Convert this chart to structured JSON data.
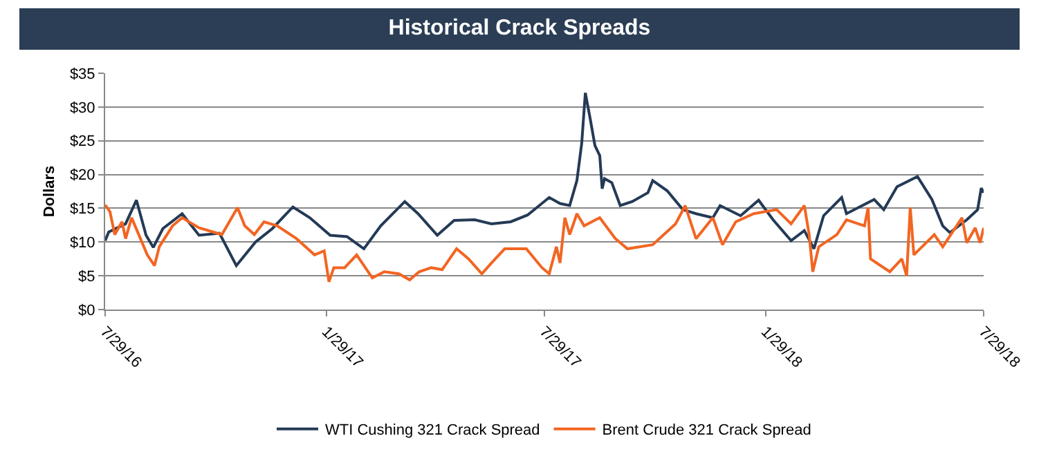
{
  "chart_data": {
    "type": "line",
    "title": "Historical Crack Spreads",
    "ylabel": "Dollars",
    "xlim": [
      "2016-07-29",
      "2018-07-29"
    ],
    "xticks": [
      {
        "value": "2016-07-29",
        "label": "7/29/16"
      },
      {
        "value": "2017-01-29",
        "label": "1/29/17"
      },
      {
        "value": "2017-07-29",
        "label": "7/29/17"
      },
      {
        "value": "2018-01-29",
        "label": "1/29/18"
      },
      {
        "value": "2018-07-29",
        "label": "7/29/18"
      }
    ],
    "ylim": [
      0,
      35
    ],
    "yticks": [
      {
        "value": 0,
        "label": "$0"
      },
      {
        "value": 5,
        "label": "$5"
      },
      {
        "value": 10,
        "label": "$10"
      },
      {
        "value": 15,
        "label": "$15"
      },
      {
        "value": 20,
        "label": "$20"
      },
      {
        "value": 25,
        "label": "$25"
      },
      {
        "value": 30,
        "label": "$30"
      },
      {
        "value": 35,
        "label": "$35"
      }
    ],
    "grid": "y",
    "legend": "bottom",
    "marker": "none",
    "line_style": "solid",
    "series": [
      {
        "name": "WTI Cushing 321 Crack Spread",
        "color": "#243a56",
        "x": [
          "2016-07-29",
          "2016-08-01",
          "2016-08-15",
          "2016-08-24",
          "2016-09-01",
          "2016-09-07",
          "2016-09-15",
          "2016-10-01",
          "2016-10-15",
          "2016-11-01",
          "2016-11-15",
          "2016-12-01",
          "2016-12-15",
          "2017-01-01",
          "2017-01-15",
          "2017-02-01",
          "2017-02-15",
          "2017-03-01",
          "2017-03-15",
          "2017-04-04",
          "2017-04-15",
          "2017-05-01",
          "2017-05-15",
          "2017-06-01",
          "2017-06-15",
          "2017-07-01",
          "2017-07-15",
          "2017-08-02",
          "2017-08-11",
          "2017-08-19",
          "2017-08-25",
          "2017-08-29",
          "2017-09-01",
          "2017-09-05",
          "2017-09-09",
          "2017-09-13",
          "2017-09-15",
          "2017-09-17",
          "2017-09-23",
          "2017-09-30",
          "2017-10-10",
          "2017-10-23",
          "2017-10-27",
          "2017-11-08",
          "2017-11-21",
          "2017-12-02",
          "2017-12-16",
          "2017-12-22",
          "2018-01-08",
          "2018-01-23",
          "2018-02-04",
          "2018-02-19",
          "2018-03-02",
          "2018-03-10",
          "2018-03-18",
          "2018-04-02",
          "2018-04-06",
          "2018-04-29",
          "2018-05-07",
          "2018-05-18",
          "2018-06-04",
          "2018-06-16",
          "2018-06-25",
          "2018-07-01",
          "2018-07-15",
          "2018-07-24",
          "2018-07-27",
          "2018-07-29"
        ],
        "values": [
          10.2,
          11.5,
          12.7,
          16.2,
          11.0,
          9.2,
          12.0,
          14.2,
          11.0,
          11.3,
          6.5,
          10.0,
          12.0,
          15.2,
          13.6,
          11.0,
          10.8,
          9.0,
          12.4,
          16.0,
          14.2,
          11.0,
          13.2,
          13.3,
          12.7,
          13.0,
          14.0,
          16.6,
          15.7,
          15.4,
          19.1,
          24.6,
          32.1,
          28.3,
          24.3,
          22.8,
          17.9,
          19.4,
          18.8,
          15.4,
          16.0,
          17.3,
          19.1,
          17.6,
          14.8,
          14.2,
          13.6,
          15.4,
          13.9,
          16.2,
          13.3,
          10.2,
          11.7,
          9.0,
          13.9,
          16.6,
          14.2,
          16.3,
          14.8,
          18.2,
          19.7,
          16.3,
          12.4,
          11.4,
          13.3,
          14.8,
          18.0,
          17.3
        ]
      },
      {
        "name": "Brent Crude 321 Crack Spread",
        "color": "#f26522",
        "x": [
          "2016-07-29",
          "2016-08-02",
          "2016-08-06",
          "2016-08-12",
          "2016-08-15",
          "2016-08-20",
          "2016-09-02",
          "2016-09-08",
          "2016-09-12",
          "2016-09-23",
          "2016-10-01",
          "2016-10-15",
          "2016-11-03",
          "2016-11-16",
          "2016-11-22",
          "2016-11-30",
          "2016-12-08",
          "2016-12-19",
          "2017-01-04",
          "2017-01-19",
          "2017-01-27",
          "2017-01-31",
          "2017-02-04",
          "2017-02-13",
          "2017-02-23",
          "2017-03-08",
          "2017-03-18",
          "2017-03-30",
          "2017-04-08",
          "2017-04-16",
          "2017-04-26",
          "2017-05-05",
          "2017-05-17",
          "2017-05-27",
          "2017-06-07",
          "2017-06-15",
          "2017-06-26",
          "2017-07-14",
          "2017-07-27",
          "2017-08-02",
          "2017-08-08",
          "2017-08-11",
          "2017-08-15",
          "2017-08-19",
          "2017-08-25",
          "2017-08-31",
          "2017-09-13",
          "2017-09-26",
          "2017-10-06",
          "2017-10-27",
          "2017-11-15",
          "2017-11-23",
          "2017-12-02",
          "2017-12-16",
          "2017-12-24",
          "2018-01-04",
          "2018-01-19",
          "2018-02-07",
          "2018-02-19",
          "2018-03-02",
          "2018-03-06",
          "2018-03-09",
          "2018-03-14",
          "2018-03-29",
          "2018-04-06",
          "2018-04-21",
          "2018-04-24",
          "2018-04-26",
          "2018-05-12",
          "2018-05-22",
          "2018-05-26",
          "2018-05-29",
          "2018-06-01",
          "2018-06-18",
          "2018-06-25",
          "2018-07-11",
          "2018-07-15",
          "2018-07-22",
          "2018-07-26",
          "2018-07-29"
        ],
        "values": [
          15.5,
          14.5,
          11.1,
          13.0,
          10.5,
          13.6,
          8.1,
          6.5,
          9.3,
          12.4,
          13.6,
          12.1,
          11.1,
          15.1,
          12.4,
          11.1,
          13.0,
          12.4,
          10.5,
          8.1,
          8.7,
          4.1,
          6.2,
          6.2,
          8.1,
          4.7,
          5.6,
          5.3,
          4.4,
          5.6,
          6.2,
          5.9,
          9.0,
          7.5,
          5.3,
          6.9,
          9.0,
          9.0,
          6.2,
          5.3,
          9.3,
          6.9,
          13.6,
          11.1,
          14.2,
          12.4,
          13.6,
          10.5,
          9.0,
          9.6,
          12.7,
          15.4,
          10.5,
          13.6,
          9.6,
          13.0,
          14.2,
          14.8,
          12.7,
          15.4,
          11.1,
          5.6,
          9.3,
          11.1,
          13.3,
          12.4,
          15.1,
          7.5,
          5.6,
          7.5,
          5.0,
          15.1,
          8.1,
          11.1,
          9.3,
          13.6,
          9.9,
          12.1,
          9.9,
          12.1
        ]
      }
    ]
  }
}
